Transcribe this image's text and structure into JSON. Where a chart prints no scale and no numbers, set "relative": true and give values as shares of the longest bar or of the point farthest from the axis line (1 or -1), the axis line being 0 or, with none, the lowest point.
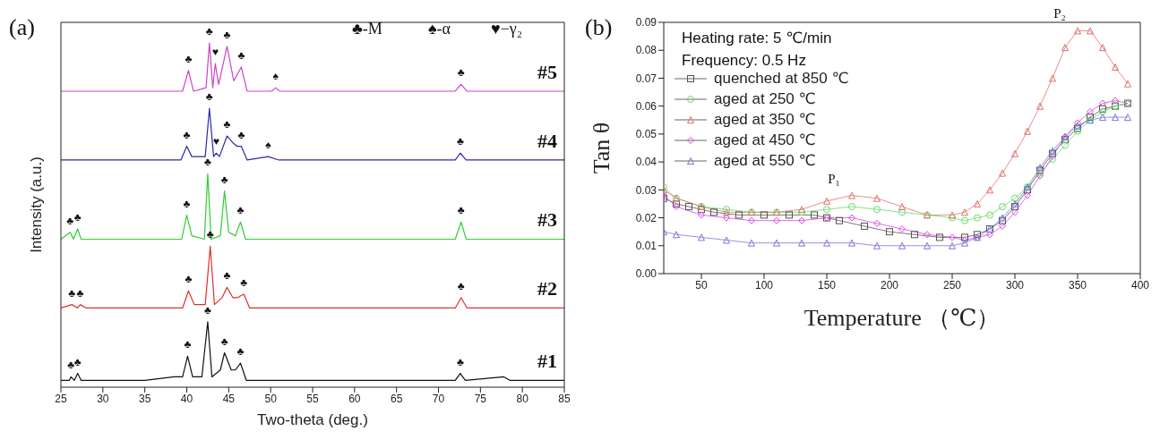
{
  "chart_data": [
    {
      "type": "line",
      "relative": true,
      "xlabel": "Two-theta (deg.)",
      "ylabel": "Intensity (a.u.)",
      "xlim": [
        25,
        85
      ],
      "xticks": [
        25,
        30,
        35,
        40,
        45,
        50,
        55,
        60,
        65,
        70,
        75,
        80,
        85
      ],
      "tick_labels": "x",
      "marker": "none",
      "line_style": "solid",
      "legend": false,
      "series": [
        {
          "name": "#1",
          "color": "#111111",
          "x": [
            25,
            26,
            26.2,
            26.6,
            27,
            27.4,
            35,
            38.5,
            39.5,
            40.1,
            40.7,
            41.8,
            42.5,
            43,
            44,
            44.5,
            45.3,
            45.8,
            46.4,
            47.1,
            50,
            60,
            70,
            72,
            72.6,
            73.2,
            77.8,
            78.5,
            85
          ],
          "values": [
            0.02,
            0.02,
            0.03,
            0.02,
            0.04,
            0.02,
            0.02,
            0.03,
            0.03,
            0.09,
            0.03,
            0.03,
            0.19,
            0.03,
            0.05,
            0.1,
            0.05,
            0.05,
            0.07,
            0.02,
            0.02,
            0.02,
            0.02,
            0.02,
            0.04,
            0.02,
            0.03,
            0.02,
            0.02
          ]
        },
        {
          "name": "#2",
          "color": "#e0302a",
          "x": [
            25,
            26.3,
            27,
            27.3,
            28,
            39.5,
            40.2,
            40.9,
            42.2,
            42.8,
            43.3,
            44.2,
            44.8,
            45.5,
            46,
            46.8,
            47.5,
            60,
            72,
            72.7,
            73.4,
            85
          ],
          "values": [
            0.23,
            0.24,
            0.23,
            0.24,
            0.23,
            0.23,
            0.28,
            0.24,
            0.24,
            0.41,
            0.24,
            0.26,
            0.29,
            0.26,
            0.26,
            0.27,
            0.23,
            0.23,
            0.23,
            0.26,
            0.23,
            0.23
          ]
        },
        {
          "name": "#3",
          "color": "#33cc33",
          "x": [
            25,
            26.1,
            26.5,
            27,
            27.4,
            39.4,
            40,
            40.6,
            42.1,
            42.5,
            42.9,
            44,
            44.5,
            45,
            45.8,
            46.4,
            47,
            60,
            72,
            72.7,
            73.3,
            85
          ],
          "values": [
            0.43,
            0.45,
            0.43,
            0.46,
            0.43,
            0.43,
            0.5,
            0.44,
            0.43,
            0.62,
            0.43,
            0.44,
            0.57,
            0.45,
            0.44,
            0.48,
            0.43,
            0.43,
            0.43,
            0.48,
            0.43,
            0.43
          ]
        },
        {
          "name": "#4",
          "color": "#2a2aa8",
          "x": [
            25,
            27,
            39.3,
            40,
            40.6,
            42.2,
            42.7,
            43.2,
            43.5,
            43.9,
            44.8,
            45.5,
            46,
            46.5,
            47.2,
            49.7,
            51,
            60,
            72,
            72.6,
            73.3,
            85
          ],
          "values": [
            0.66,
            0.66,
            0.66,
            0.7,
            0.67,
            0.67,
            0.81,
            0.67,
            0.68,
            0.67,
            0.73,
            0.71,
            0.7,
            0.7,
            0.66,
            0.67,
            0.66,
            0.66,
            0.66,
            0.68,
            0.66,
            0.66
          ]
        },
        {
          "name": "#5",
          "color": "#cc44cc",
          "x": [
            25,
            26.5,
            39.5,
            40.2,
            40.8,
            42.3,
            42.7,
            43.1,
            43.4,
            43.8,
            44.8,
            45.6,
            46.5,
            47.2,
            50.1,
            50.6,
            51.1,
            60,
            72,
            72.7,
            73.4,
            85
          ],
          "values": [
            0.86,
            0.86,
            0.86,
            0.92,
            0.86,
            0.87,
            1,
            0.87,
            0.94,
            0.88,
            0.99,
            0.89,
            0.93,
            0.86,
            0.86,
            0.87,
            0.86,
            0.86,
            0.86,
            0.88,
            0.86,
            0.86
          ]
        }
      ],
      "annotations": [
        "(a)",
        "♣-M",
        "♠-α",
        "♥−γ₂",
        {
          "text": "♣",
          "x": 26.2,
          "y": 0.03
        },
        {
          "text": "♣",
          "x": 27,
          "y": 0.04
        },
        {
          "text": "♣",
          "x": 40.1,
          "y": 0.09
        },
        {
          "text": "♣",
          "x": 42.5,
          "y": 0.19
        },
        {
          "text": "♣",
          "x": 44.5,
          "y": 0.1
        },
        {
          "text": "♣",
          "x": 46.4,
          "y": 0.07
        },
        {
          "text": "♣",
          "x": 72.6,
          "y": 0.04
        },
        {
          "text": "♣",
          "x": 26.3,
          "y": 0.24
        },
        {
          "text": "♣",
          "x": 27.3,
          "y": 0.24
        },
        {
          "text": "♣",
          "x": 40.2,
          "y": 0.28
        },
        {
          "text": "♣",
          "x": 42.8,
          "y": 0.41
        },
        {
          "text": "♣",
          "x": 44.8,
          "y": 0.29
        },
        {
          "text": "♣",
          "x": 46.8,
          "y": 0.27
        },
        {
          "text": "♣",
          "x": 72.7,
          "y": 0.26
        },
        {
          "text": "♣",
          "x": 26.1,
          "y": 0.45
        },
        {
          "text": "♣",
          "x": 27,
          "y": 0.46
        },
        {
          "text": "♣",
          "x": 40,
          "y": 0.5
        },
        {
          "text": "♣",
          "x": 42.5,
          "y": 0.62
        },
        {
          "text": "♣",
          "x": 44.5,
          "y": 0.57
        },
        {
          "text": "♣",
          "x": 46.4,
          "y": 0.48
        },
        {
          "text": "♣",
          "x": 72.7,
          "y": 0.48
        },
        {
          "text": "♣",
          "x": 40,
          "y": 0.7
        },
        {
          "text": "♣",
          "x": 42.7,
          "y": 0.81
        },
        {
          "text": "♥",
          "x": 43.5,
          "y": 0.68
        },
        {
          "text": "♣",
          "x": 44.8,
          "y": 0.73
        },
        {
          "text": "♣",
          "x": 46.5,
          "y": 0.7
        },
        {
          "text": "♠",
          "x": 49.7,
          "y": 0.67
        },
        {
          "text": "♣",
          "x": 72.6,
          "y": 0.68
        },
        {
          "text": "♣",
          "x": 40.2,
          "y": 0.92
        },
        {
          "text": "♣",
          "x": 42.7,
          "y": 1
        },
        {
          "text": "♥",
          "x": 43.4,
          "y": 0.94
        },
        {
          "text": "♣",
          "x": 44.8,
          "y": 0.99
        },
        {
          "text": "♣",
          "x": 46.5,
          "y": 0.93
        },
        {
          "text": "♠",
          "x": 50.6,
          "y": 0.87
        },
        {
          "text": "♣",
          "x": 72.7,
          "y": 0.88
        }
      ]
    },
    {
      "type": "line",
      "xlabel": "Temperature （℃）",
      "ylabel": "Tan θ",
      "xlim": [
        20,
        400
      ],
      "xticks": [
        50,
        100,
        150,
        200,
        250,
        300,
        350,
        400
      ],
      "ylim": [
        0,
        0.09
      ],
      "yticks": [
        {
          "value": 0,
          "label": "0.00"
        },
        {
          "value": 0.01,
          "label": "0.01"
        },
        {
          "value": 0.02,
          "label": "0.02"
        },
        {
          "value": 0.03,
          "label": "0.03"
        },
        {
          "value": 0.04,
          "label": "0.04"
        },
        {
          "value": 0.05,
          "label": "0.05"
        },
        {
          "value": 0.06,
          "label": "0.06"
        },
        {
          "value": 0.07,
          "label": "0.07"
        },
        {
          "value": 0.08,
          "label": "0.08"
        },
        {
          "value": 0.09,
          "label": "0.09"
        }
      ],
      "line_style": "solid",
      "legend": "top left",
      "series": [
        {
          "name": "quenched at 850 ℃",
          "color": "#555555",
          "marker": "square",
          "x": [
            20,
            30,
            40,
            50,
            60,
            80,
            100,
            120,
            140,
            150,
            160,
            180,
            200,
            220,
            240,
            260,
            270,
            280,
            290,
            300,
            310,
            320,
            330,
            340,
            350,
            360,
            370,
            380,
            390
          ],
          "values": [
            0.027,
            0.025,
            0.024,
            0.023,
            0.022,
            0.021,
            0.021,
            0.021,
            0.021,
            0.02,
            0.019,
            0.017,
            0.015,
            0.014,
            0.013,
            0.013,
            0.014,
            0.016,
            0.019,
            0.024,
            0.03,
            0.037,
            0.043,
            0.048,
            0.052,
            0.056,
            0.059,
            0.06,
            0.061
          ]
        },
        {
          "name": "aged at 250 ℃",
          "color": "#66dd66",
          "marker": "circle",
          "x": [
            20,
            30,
            50,
            70,
            90,
            110,
            130,
            150,
            170,
            190,
            210,
            230,
            250,
            260,
            270,
            280,
            290,
            300,
            310,
            320,
            330,
            340,
            350,
            360,
            370,
            380,
            390
          ],
          "values": [
            0.031,
            0.027,
            0.024,
            0.023,
            0.022,
            0.022,
            0.022,
            0.023,
            0.024,
            0.023,
            0.022,
            0.021,
            0.02,
            0.019,
            0.02,
            0.021,
            0.024,
            0.027,
            0.031,
            0.036,
            0.041,
            0.046,
            0.051,
            0.055,
            0.058,
            0.06,
            0.061
          ]
        },
        {
          "name": "aged at 350 ℃",
          "color": "#e07070",
          "marker": "triangle",
          "x": [
            20,
            30,
            50,
            70,
            90,
            110,
            130,
            150,
            170,
            190,
            210,
            230,
            250,
            260,
            270,
            280,
            290,
            300,
            310,
            320,
            330,
            340,
            350,
            360,
            370,
            380,
            390
          ],
          "values": [
            0.03,
            0.027,
            0.024,
            0.022,
            0.022,
            0.022,
            0.023,
            0.026,
            0.028,
            0.027,
            0.024,
            0.021,
            0.021,
            0.022,
            0.025,
            0.03,
            0.036,
            0.043,
            0.051,
            0.06,
            0.07,
            0.081,
            0.087,
            0.087,
            0.081,
            0.074,
            0.068
          ]
        },
        {
          "name": "aged at 450 ℃",
          "color": "#dd44dd",
          "marker": "diamond",
          "x": [
            20,
            30,
            50,
            70,
            90,
            110,
            130,
            150,
            170,
            190,
            210,
            230,
            250,
            260,
            270,
            280,
            290,
            300,
            310,
            320,
            330,
            340,
            350,
            360,
            370,
            380,
            390
          ],
          "values": [
            0.028,
            0.024,
            0.021,
            0.02,
            0.019,
            0.019,
            0.019,
            0.02,
            0.02,
            0.018,
            0.016,
            0.014,
            0.013,
            0.012,
            0.013,
            0.014,
            0.017,
            0.022,
            0.028,
            0.035,
            0.042,
            0.049,
            0.054,
            0.058,
            0.061,
            0.062,
            0.061
          ]
        },
        {
          "name": "aged at 550 ℃",
          "color": "#7777dd",
          "marker": "triangle",
          "x": [
            20,
            30,
            50,
            70,
            90,
            110,
            130,
            150,
            170,
            190,
            210,
            230,
            250,
            260,
            270,
            280,
            290,
            300,
            310,
            320,
            330,
            340,
            350,
            360,
            370,
            380,
            390
          ],
          "values": [
            0.015,
            0.014,
            0.013,
            0.012,
            0.011,
            0.011,
            0.011,
            0.011,
            0.011,
            0.01,
            0.01,
            0.01,
            0.01,
            0.011,
            0.013,
            0.016,
            0.02,
            0.025,
            0.031,
            0.038,
            0.044,
            0.049,
            0.053,
            0.055,
            0.056,
            0.056,
            0.056
          ]
        }
      ],
      "annotations": [
        "(b)",
        "Heating rate: 5 ℃/min",
        "Frequency: 0.5 Hz",
        {
          "text": "P₁",
          "x": 170,
          "y": 0.028
        },
        {
          "text": "P₂",
          "x": 350,
          "y": 0.087
        }
      ]
    }
  ]
}
